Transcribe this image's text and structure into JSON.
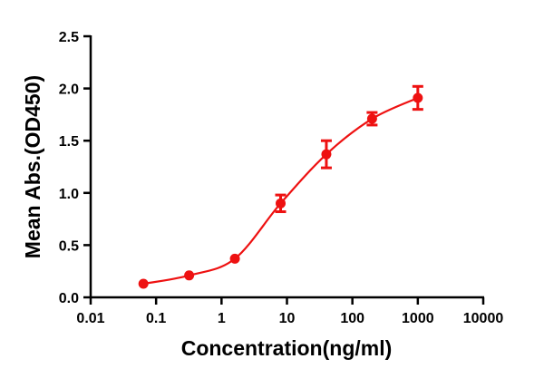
{
  "chart_data": {
    "type": "scatter",
    "title": "",
    "xlabel": "Concentration(ng/ml)",
    "ylabel": "Mean Abs.(OD450)",
    "x_scale": "log",
    "xlim": [
      0.01,
      10000
    ],
    "ylim": [
      0,
      2.5
    ],
    "x_ticks": [
      "0.01",
      "0.1",
      "1",
      "10",
      "100",
      "1000",
      "10000"
    ],
    "y_ticks": [
      "0.0",
      "0.5",
      "1.0",
      "1.5",
      "2.0",
      "2.5"
    ],
    "grid": false,
    "legend": "none",
    "color": "#ee1111",
    "series": [
      {
        "x": [
          0.064,
          0.32,
          1.6,
          8,
          40,
          200,
          1000
        ],
        "y": [
          0.13,
          0.21,
          0.37,
          0.9,
          1.37,
          1.71,
          1.91
        ],
        "error": [
          0,
          0,
          0,
          0.08,
          0.13,
          0.06,
          0.11
        ],
        "fit_curve": true
      }
    ]
  }
}
